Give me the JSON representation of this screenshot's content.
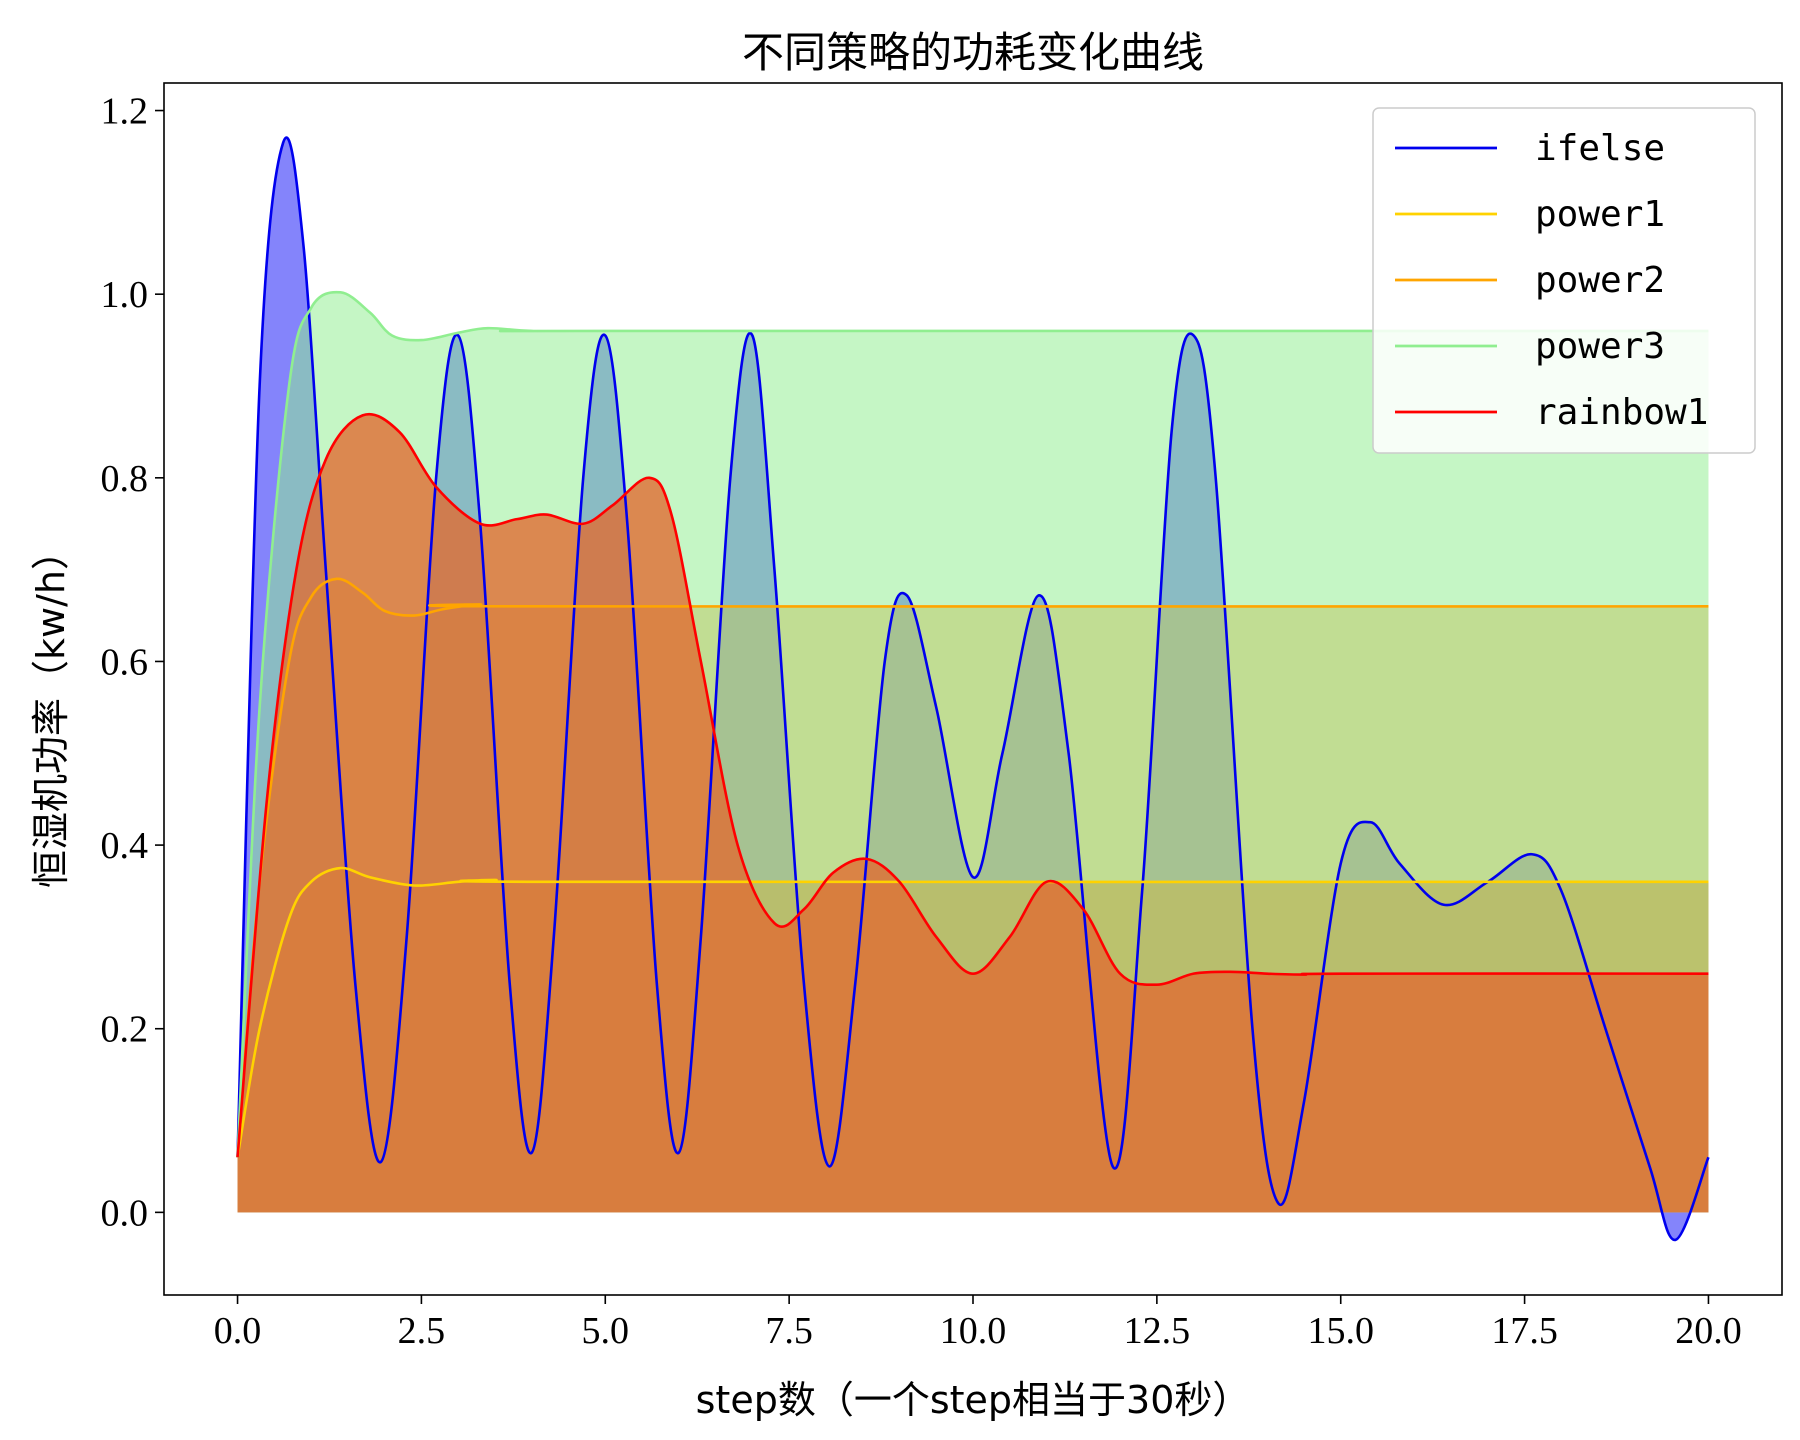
{
  "chart_data": {
    "type": "area",
    "title": "不同策略的功耗变化曲线",
    "xlabel": "step数（一个step相当于30秒）",
    "ylabel": "恒湿机功率（kw/h）",
    "xlim": [
      -1.0,
      21.0
    ],
    "ylim": [
      -0.09,
      1.23
    ],
    "xticks": [
      0.0,
      2.5,
      5.0,
      7.5,
      10.0,
      12.5,
      15.0,
      17.5,
      20.0
    ],
    "yticks": [
      0.0,
      0.2,
      0.4,
      0.6,
      0.8,
      1.0,
      1.2
    ],
    "xtick_labels": [
      "0.0",
      "2.5",
      "5.0",
      "7.5",
      "10.0",
      "12.5",
      "15.0",
      "17.5",
      "20.0"
    ],
    "ytick_labels": [
      "0.0",
      "0.2",
      "0.4",
      "0.6",
      "0.8",
      "1.0",
      "1.2"
    ],
    "grid": false,
    "legend_position": "top-right",
    "series": [
      {
        "name": "ifelse",
        "color": "#0000ee",
        "fill_color": "#6e6efa",
        "fill_opacity": 0.85,
        "x": [
          0,
          0.3,
          0.62,
          0.9,
          1.2,
          1.6,
          1.95,
          2.3,
          2.7,
          3.0,
          3.3,
          3.7,
          4.0,
          4.3,
          4.7,
          5.0,
          5.3,
          5.7,
          6.0,
          6.3,
          6.7,
          7.0,
          7.3,
          7.7,
          8.05,
          8.4,
          8.8,
          9.1,
          9.5,
          10.0,
          10.4,
          10.9,
          11.3,
          11.9,
          12.3,
          12.7,
          13.0,
          13.3,
          13.8,
          14.15,
          14.5,
          15.0,
          15.4,
          15.8,
          16.4,
          17.0,
          17.6,
          18.0,
          18.6,
          19.2,
          19.55,
          20.0
        ],
        "values": [
          0.06,
          0.9,
          1.165,
          1.05,
          0.7,
          0.25,
          0.055,
          0.3,
          0.8,
          0.955,
          0.75,
          0.25,
          0.065,
          0.3,
          0.8,
          0.955,
          0.75,
          0.25,
          0.065,
          0.3,
          0.8,
          0.955,
          0.7,
          0.25,
          0.05,
          0.25,
          0.6,
          0.672,
          0.55,
          0.365,
          0.5,
          0.672,
          0.5,
          0.05,
          0.35,
          0.85,
          0.955,
          0.8,
          0.2,
          0.01,
          0.12,
          0.38,
          0.425,
          0.38,
          0.335,
          0.36,
          0.39,
          0.35,
          0.2,
          0.05,
          -0.03,
          0.06
        ]
      },
      {
        "name": "power1",
        "color": "#ffd200",
        "fill_color": "#e06d32",
        "fill_opacity": 0.85,
        "x": [
          0,
          0.3,
          0.7,
          1.0,
          1.4,
          1.8,
          2.4,
          3.0,
          3.5,
          4.5,
          20.0
        ],
        "values": [
          0.06,
          0.2,
          0.32,
          0.36,
          0.375,
          0.365,
          0.356,
          0.36,
          0.362,
          0.36,
          0.36
        ]
      },
      {
        "name": "power2",
        "color": "#ffa500",
        "fill_color": "#f0a040",
        "fill_opacity": 0.55,
        "x": [
          0,
          0.3,
          0.7,
          1.0,
          1.35,
          1.7,
          2.0,
          2.4,
          2.8,
          3.3,
          4.0,
          20.0
        ],
        "values": [
          0.06,
          0.36,
          0.6,
          0.67,
          0.69,
          0.675,
          0.655,
          0.65,
          0.657,
          0.662,
          0.66,
          0.66
        ]
      },
      {
        "name": "power3",
        "color": "#90ee90",
        "fill_color": "#90ee90",
        "fill_opacity": 0.52,
        "x": [
          0,
          0.3,
          0.7,
          1.0,
          1.4,
          1.8,
          2.1,
          2.5,
          3.0,
          3.4,
          4.0,
          5.0,
          20.0
        ],
        "values": [
          0.06,
          0.55,
          0.9,
          0.985,
          1.002,
          0.98,
          0.955,
          0.95,
          0.958,
          0.963,
          0.96,
          0.96,
          0.96
        ]
      },
      {
        "name": "rainbow1",
        "color": "#ff0000",
        "fill_color": "#e06d32",
        "fill_opacity": 0.8,
        "x": [
          0,
          0.4,
          0.8,
          1.2,
          1.7,
          2.2,
          2.7,
          3.3,
          3.8,
          4.2,
          4.7,
          5.1,
          5.6,
          5.9,
          6.3,
          6.8,
          7.3,
          7.7,
          8.1,
          8.55,
          9.0,
          9.5,
          10.0,
          10.5,
          11.0,
          11.5,
          12.0,
          12.5,
          13.0,
          13.5,
          14.0,
          14.5,
          15.0,
          20.0
        ],
        "values": [
          0.06,
          0.45,
          0.7,
          0.82,
          0.868,
          0.85,
          0.79,
          0.75,
          0.755,
          0.76,
          0.75,
          0.77,
          0.8,
          0.76,
          0.6,
          0.4,
          0.315,
          0.33,
          0.37,
          0.385,
          0.36,
          0.3,
          0.26,
          0.3,
          0.36,
          0.33,
          0.26,
          0.248,
          0.26,
          0.262,
          0.26,
          0.259,
          0.26,
          0.26
        ]
      }
    ]
  }
}
